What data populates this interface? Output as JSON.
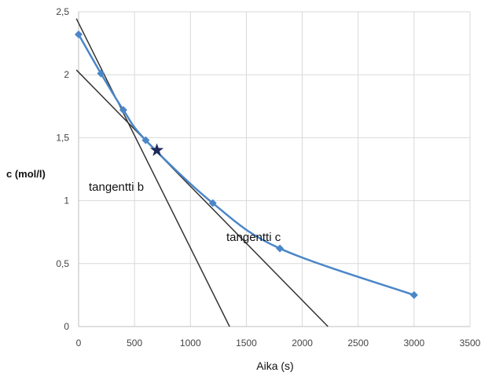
{
  "chart_data": {
    "type": "line",
    "xlabel": "Aika (s)",
    "ylabel": "c (mol/l)",
    "xlim": [
      0,
      3500
    ],
    "ylim": [
      0,
      2.5
    ],
    "x_ticks": [
      "0",
      "500",
      "1000",
      "1500",
      "2000",
      "2500",
      "3000",
      "3500"
    ],
    "y_ticks": [
      "0",
      "0,5",
      "1",
      "1,5",
      "2",
      "2,5"
    ],
    "grid": true,
    "series": [
      {
        "name": "",
        "color": "#4a86c8",
        "marker": "diamond",
        "smooth": true,
        "x": [
          0,
          200,
          400,
          600,
          1200,
          1800,
          3000
        ],
        "y": [
          2.32,
          2.01,
          1.72,
          1.48,
          0.98,
          0.62,
          0.25
        ]
      }
    ],
    "highlight_point": {
      "x": 700,
      "y": 1.4,
      "marker": "star",
      "color": "#1f2a5c"
    },
    "tangent_lines": [
      {
        "label": "tangentti b",
        "x": [
          0,
          1350
        ],
        "y": [
          2.41,
          0
        ]
      },
      {
        "label": "tangentti c",
        "x": [
          0,
          2230
        ],
        "y": [
          2.02,
          0
        ]
      }
    ],
    "line_color": "#333333",
    "grid_color": "#d9d9d9"
  }
}
